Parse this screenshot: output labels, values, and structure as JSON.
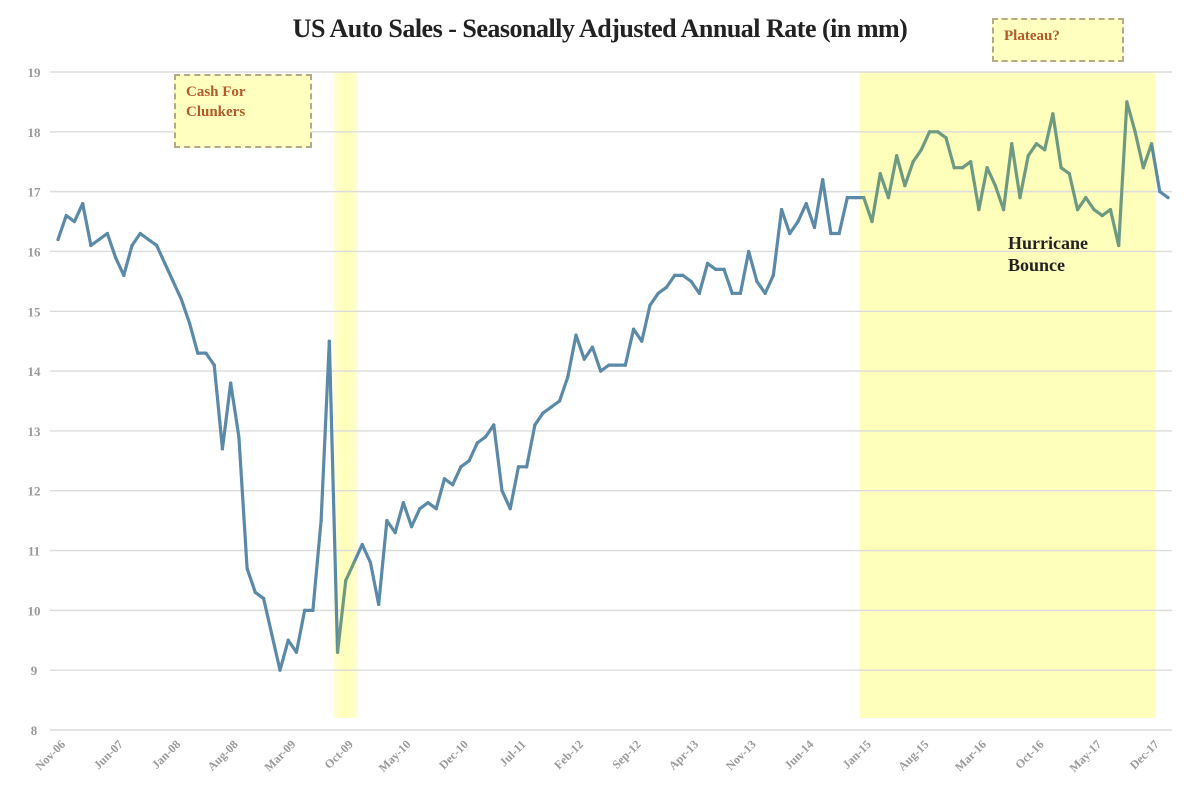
{
  "chart_data": {
    "type": "line",
    "title": "US Auto Sales - Seasonally Adjusted Annual Rate (in mm)",
    "xlabel": "",
    "ylabel": "",
    "ylim": [
      8,
      19
    ],
    "yticks": [
      "8",
      "9",
      "10",
      "11",
      "12",
      "13",
      "14",
      "15",
      "16",
      "17",
      "18",
      "19"
    ],
    "grid": true,
    "xtick_labels": [
      "Nov-06",
      "Jun-07",
      "Jan-08",
      "Aug-08",
      "Mar-09",
      "Oct-09",
      "May-10",
      "Dec-10",
      "Jul-11",
      "Feb-12",
      "Sep-12",
      "Apr-13",
      "Nov-13",
      "Jun-14",
      "Jan-15",
      "Aug-15",
      "Mar-16",
      "Oct-16",
      "May-17",
      "Dec-17"
    ],
    "series": [
      {
        "name": "SAAR",
        "start": "Nov-06",
        "frequency": "monthly",
        "values": [
          16.2,
          16.6,
          16.5,
          16.8,
          16.1,
          16.2,
          16.3,
          15.9,
          15.6,
          16.1,
          16.3,
          16.2,
          16.1,
          15.8,
          15.5,
          15.2,
          14.8,
          14.3,
          14.3,
          14.1,
          12.7,
          13.8,
          12.9,
          10.7,
          10.3,
          10.2,
          9.6,
          9.0,
          9.5,
          9.3,
          10.0,
          10.0,
          11.5,
          14.5,
          9.3,
          10.5,
          10.8,
          11.1,
          10.8,
          10.1,
          11.5,
          11.3,
          11.8,
          11.4,
          11.7,
          11.8,
          11.7,
          12.2,
          12.1,
          12.4,
          12.5,
          12.8,
          12.9,
          13.1,
          12.0,
          11.7,
          12.4,
          12.4,
          13.1,
          13.3,
          13.4,
          13.5,
          13.9,
          14.6,
          14.2,
          14.4,
          14.0,
          14.1,
          14.1,
          14.1,
          14.7,
          14.5,
          15.1,
          15.3,
          15.4,
          15.6,
          15.6,
          15.5,
          15.3,
          15.8,
          15.7,
          15.7,
          15.3,
          15.3,
          16.0,
          15.5,
          15.3,
          15.6,
          16.7,
          16.3,
          16.5,
          16.8,
          16.4,
          17.2,
          16.3,
          16.3,
          16.9,
          16.9,
          16.9,
          16.5,
          17.3,
          16.9,
          17.6,
          17.1,
          17.5,
          17.7,
          18.0,
          18.0,
          17.9,
          17.4,
          17.4,
          17.5,
          16.7,
          17.4,
          17.1,
          16.7,
          17.8,
          16.9,
          17.6,
          17.8,
          17.7,
          18.3,
          17.4,
          17.3,
          16.7,
          16.9,
          16.7,
          16.6,
          16.7,
          16.1,
          18.5,
          18.0,
          17.4,
          17.8,
          17.0,
          16.9
        ]
      }
    ],
    "shaded_regions": [
      {
        "label": "Cash For Clunkers",
        "from": "Sep-09",
        "to": "Nov-09"
      },
      {
        "label": "Plateau?",
        "from": "Jan-15",
        "to": "Dec-17"
      }
    ],
    "annotations": [
      {
        "text": "Cash For Clunkers"
      },
      {
        "text": "Plateau?"
      },
      {
        "text": "Hurricane Bounce"
      }
    ],
    "colors": {
      "line": "#5a8aa8",
      "line_in_shade": "#6e9a82",
      "shade": "#ffffb0",
      "grid": "#dcdcdc",
      "tick_text": "#9a9a9a"
    }
  },
  "labels": {
    "cash_for_clunkers_line1": "Cash For",
    "cash_for_clunkers_line2": "Clunkers",
    "plateau": "Plateau?",
    "hurricane_line1": "Hurricane",
    "hurricane_line2": "Bounce"
  }
}
